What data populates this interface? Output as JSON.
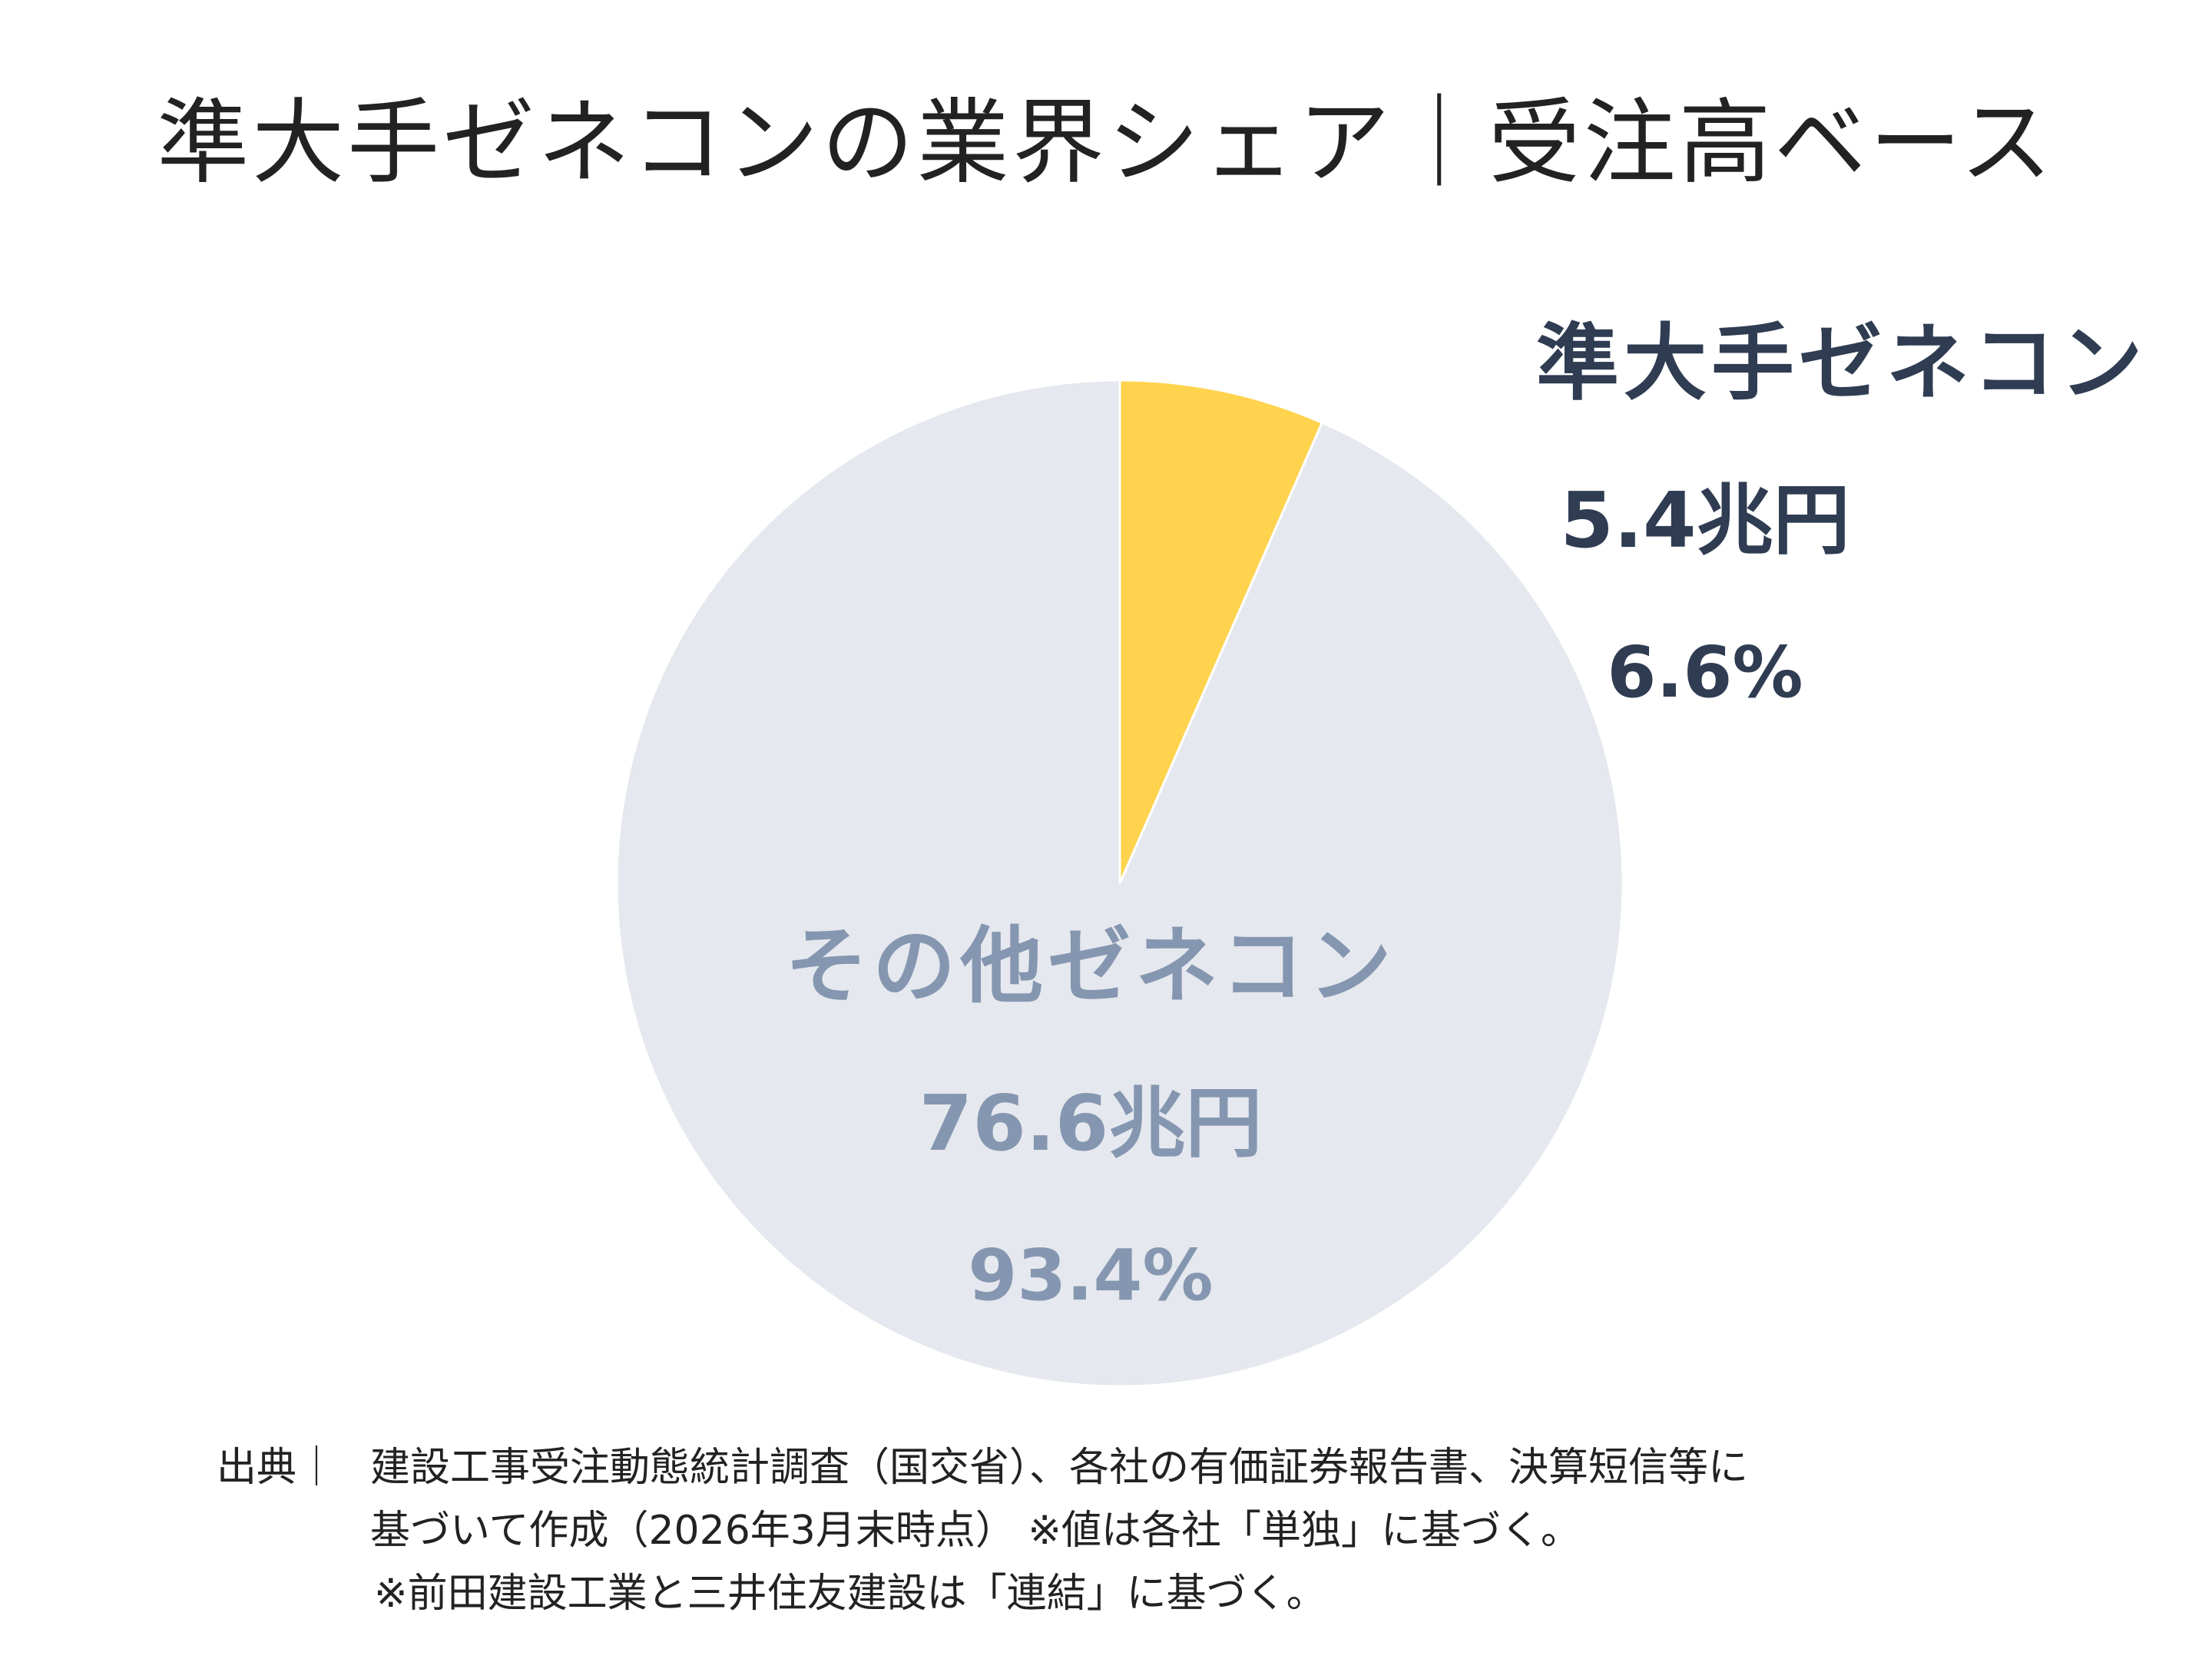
{
  "title": "準大手ゼネコンの業界シェア｜受注高ベース",
  "chart_data": {
    "type": "pie",
    "title": "準大手ゼネコンの業界シェア｜受注高ベース",
    "slices": [
      {
        "label": "準大手ゼネコン",
        "value": 5.4,
        "unit": "兆円",
        "amount_text": "5.4兆円",
        "percent": 6.6,
        "percent_text": "6.6%",
        "color": "#FFD34E"
      },
      {
        "label": "その他ゼネコン",
        "value": 76.6,
        "unit": "兆円",
        "amount_text": "76.6兆円",
        "percent": 93.4,
        "percent_text": "93.4%",
        "color": "#E5E8EE"
      }
    ]
  },
  "colors": {
    "major_label": "#2f3c52",
    "other_label": "#8596b0",
    "slice_border": "#ffffff"
  },
  "source": {
    "head": "出典｜",
    "line1": "建設工事受注動態統計調査（国交省）、各社の有価証券報告書、決算短信等に",
    "line2": "基づいて作成（2026年3月末時点）  ※値は各社「単独」に基づく。",
    "line3": "※前田建設工業と三井住友建設は「連結」に基づく。"
  }
}
